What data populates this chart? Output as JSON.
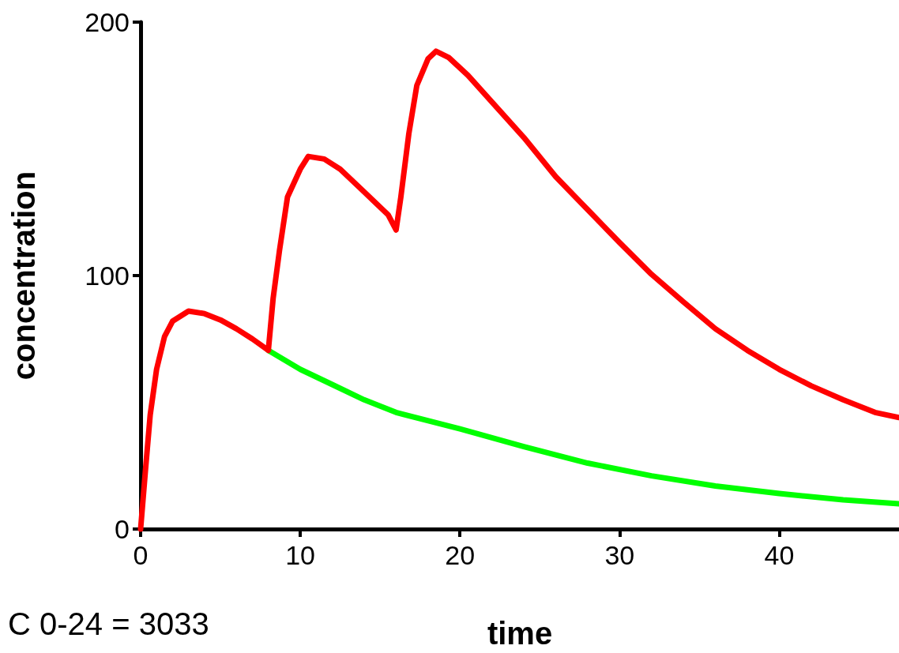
{
  "chart_data": {
    "type": "line",
    "xlabel": "time",
    "ylabel": "concentration",
    "xlim": [
      0,
      47.5
    ],
    "xticks": [
      0,
      10,
      20,
      30,
      40
    ],
    "ylim": [
      0,
      200
    ],
    "yticks": [
      0,
      100,
      200
    ],
    "grid": false,
    "marker": "none",
    "line_style": "solid",
    "annotations": [
      "C 0-24 = 3033"
    ],
    "series": [
      {
        "color": "#00ff00",
        "x": [
          8,
          10,
          12,
          14,
          16,
          20,
          24,
          28,
          32,
          36,
          40,
          44,
          47.5
        ],
        "values": [
          70.5,
          63,
          57,
          51,
          46,
          39.5,
          32.5,
          26,
          21,
          17,
          14,
          11.5,
          10
        ]
      },
      {
        "color": "#ff0000",
        "x": [
          0,
          0.3,
          0.6,
          1,
          1.5,
          2,
          3,
          4,
          5,
          6,
          7,
          8,
          8.3,
          8.7,
          9.2,
          10,
          10.5,
          11.5,
          12.5,
          14,
          15.5,
          16,
          16.3,
          16.8,
          17.3,
          18,
          18.5,
          19.3,
          20.5,
          22,
          24,
          26,
          28,
          30,
          32,
          34,
          36,
          38,
          40,
          42,
          44,
          46,
          47.5
        ],
        "values": [
          0,
          23,
          45,
          63,
          76,
          82,
          86,
          85,
          82.5,
          79,
          75,
          70.5,
          91,
          110,
          131,
          142,
          147,
          146,
          142,
          133,
          124,
          118,
          131,
          156,
          175,
          185.5,
          188.5,
          186,
          179,
          168.5,
          154.5,
          139,
          126,
          113,
          100.5,
          89.6,
          79,
          70.5,
          63,
          56.5,
          51,
          46,
          44
        ]
      }
    ]
  }
}
